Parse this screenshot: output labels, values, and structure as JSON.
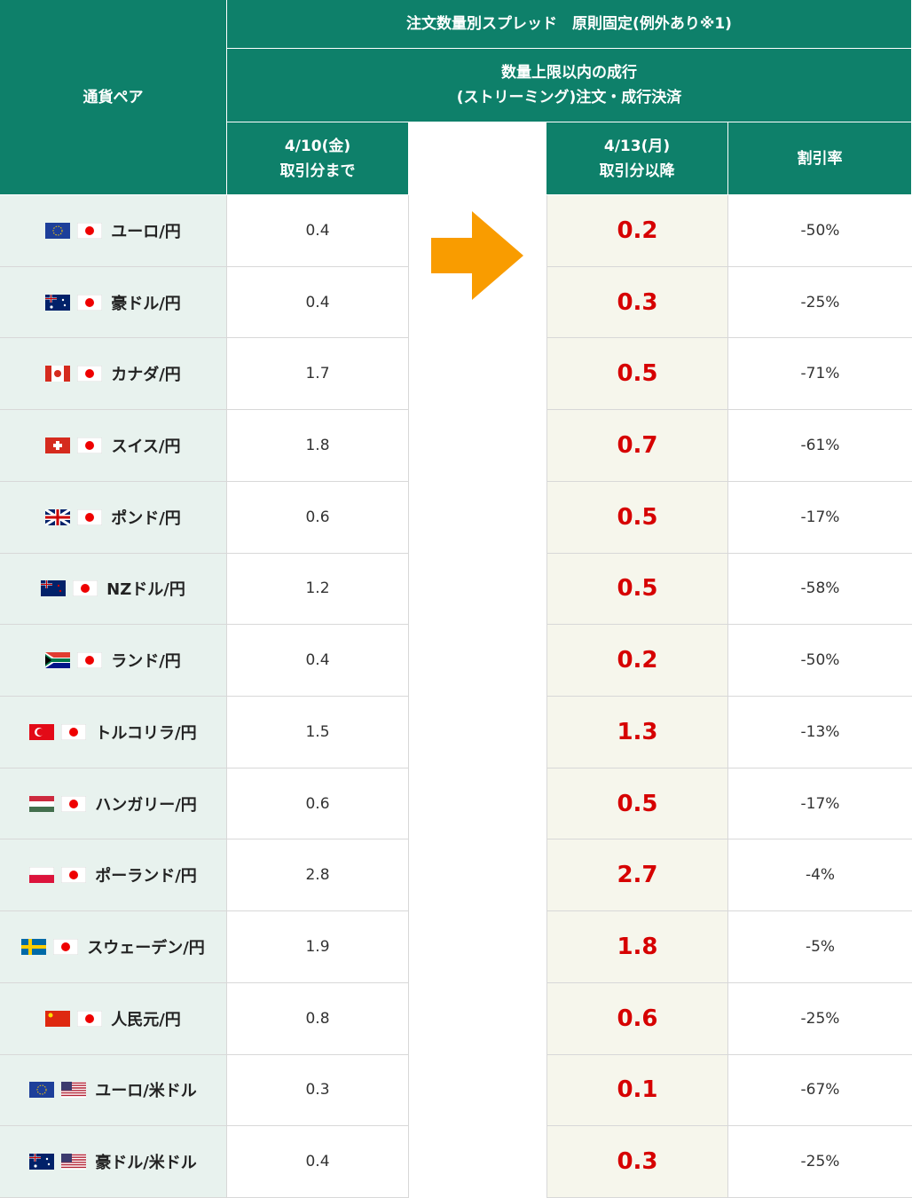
{
  "header": {
    "pair": "通貨ペア",
    "title": "注文数量別スプレッド　原則固定(例外あり※1)",
    "subtitle": "数量上限以内の成行\n(ストリーミング)注文・成行決済",
    "before": "4/10(金)\n取引分まで",
    "after": "4/13(月)\n取引分以降",
    "rate": "割引率"
  },
  "table": {
    "rows": [
      [
        "ユーロ/円",
        "0.4",
        "0.2",
        "-50%"
      ],
      [
        "豪ドル/円",
        "0.4",
        "0.3",
        "-25%"
      ],
      [
        "カナダ/円",
        "1.7",
        "0.5",
        "-71%"
      ],
      [
        "スイス/円",
        "1.8",
        "0.7",
        "-61%"
      ],
      [
        "ポンド/円",
        "0.6",
        "0.5",
        "-17%"
      ],
      [
        "NZドル/円",
        "1.2",
        "0.5",
        "-58%"
      ],
      [
        "ランド/円",
        "0.4",
        "0.2",
        "-50%"
      ],
      [
        "トルコリラ/円",
        "1.5",
        "1.3",
        "-13%"
      ],
      [
        "ハンガリー/円",
        "0.6",
        "0.5",
        "-17%"
      ],
      [
        "ポーランド/円",
        "2.8",
        "2.7",
        "-4%"
      ],
      [
        "スウェーデン/円",
        "1.9",
        "1.8",
        "-5%"
      ],
      [
        "人民元/円",
        "0.8",
        "0.6",
        "-25%"
      ],
      [
        "ユーロ/米ドル",
        "0.3",
        "0.1",
        "-67%"
      ],
      [
        "豪ドル/米ドル",
        "0.4",
        "0.3",
        "-25%"
      ]
    ]
  }
}
